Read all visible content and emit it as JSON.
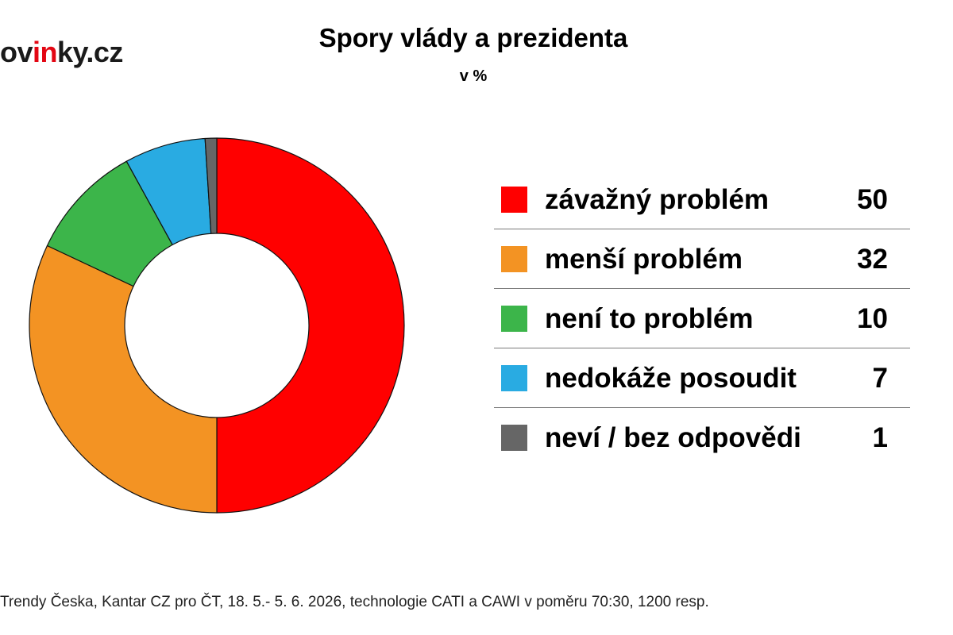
{
  "logo": {
    "text_main": "ov",
    "text_accent": "in",
    "text_end": "ky.cz",
    "accent_color": "#e30613"
  },
  "chart_data": {
    "type": "pie",
    "title": "Spory vlády a prezidenta",
    "subtitle": "v %",
    "donut": true,
    "legend_position": "right",
    "series": [
      {
        "name": "závažný problém",
        "value": 50,
        "color": "#ff0000"
      },
      {
        "name": "menší problém",
        "value": 32,
        "color": "#f39323"
      },
      {
        "name": "není to problém",
        "value": 10,
        "color": "#3cb54a"
      },
      {
        "name": "nedokáže posoudit",
        "value": 7,
        "color": "#29abe2"
      },
      {
        "name": "neví / bez odpovědi",
        "value": 1,
        "color": "#666666"
      }
    ]
  },
  "source": "Trendy Česka, Kantar CZ pro ČT, 18. 5.- 5. 6. 2026, technologie CATI a CAWI v poměru 70:30, 1200 resp."
}
